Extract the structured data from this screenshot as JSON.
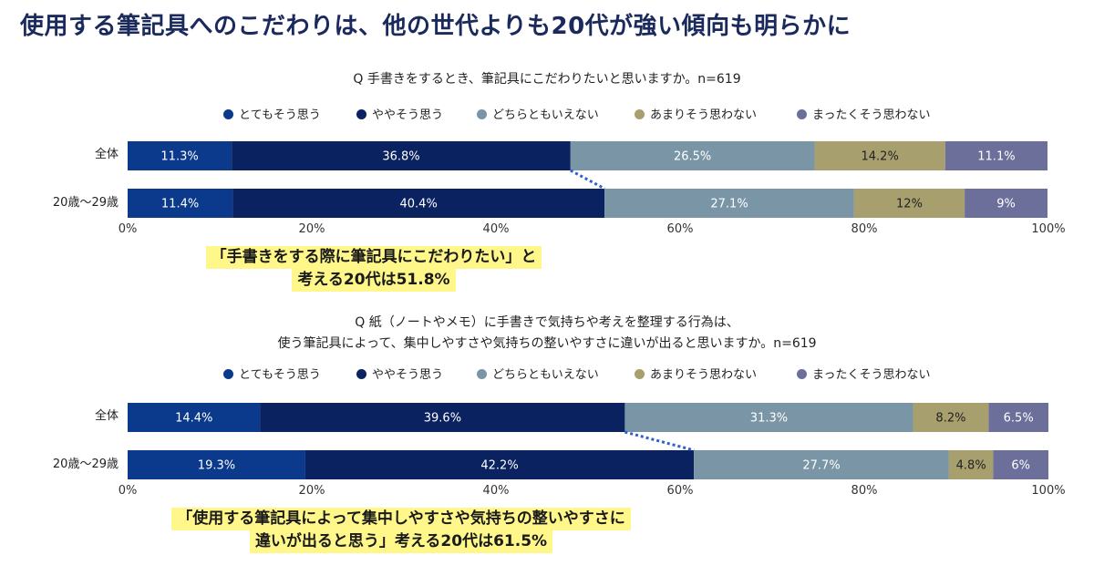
{
  "headline": "使用する筆記具へのこだわりは、他の世代よりも20代が強い傾向も明らかに",
  "legend": [
    {
      "label": "とてもそう思う",
      "color": "#0b3a8c"
    },
    {
      "label": "ややそう思う",
      "color": "#0a2260"
    },
    {
      "label": "どちらともいえない",
      "color": "#7a96a6"
    },
    {
      "label": "あまりそう思わない",
      "color": "#a89f6e"
    },
    {
      "label": "まったくそう思わない",
      "color": "#6c6f9a"
    }
  ],
  "chart_data": [
    {
      "type": "bar",
      "stacked": true,
      "orientation": "horizontal",
      "title": "Q 手書きをするとき、筆記具にこだわりたいと思いますか。n=619",
      "categories": [
        "全体",
        "20歳〜29歳"
      ],
      "series": [
        {
          "name": "とてもそう思う",
          "values": [
            11.3,
            11.4
          ],
          "labels": [
            "11.3%",
            "11.4%"
          ]
        },
        {
          "name": "ややそう思う",
          "values": [
            36.8,
            40.4
          ],
          "labels": [
            "36.8%",
            "40.4%"
          ]
        },
        {
          "name": "どちらともいえない",
          "values": [
            26.5,
            27.1
          ],
          "labels": [
            "26.5%",
            "27.1%"
          ]
        },
        {
          "name": "あまりそう思わない",
          "values": [
            14.2,
            12
          ],
          "labels": [
            "14.2%",
            "12%"
          ]
        },
        {
          "name": "まったくそう思わない",
          "values": [
            11.1,
            9
          ],
          "labels": [
            "11.1%",
            "9%"
          ]
        }
      ],
      "xlim": [
        0,
        100
      ],
      "xticks": [
        "0%",
        "20%",
        "40%",
        "60%",
        "80%",
        "100%"
      ],
      "callout": [
        "「手書きをする際に筆記具にこだわりたい」と",
        "考える20代は51.8%"
      ]
    },
    {
      "type": "bar",
      "stacked": true,
      "orientation": "horizontal",
      "title_lines": [
        "Q 紙（ノートやメモ）に手書きで気持ちや考えを整理する行為は、",
        "使う筆記具によって、集中しやすさや気持ちの整いやすさに違いが出ると思いますか。n=619"
      ],
      "categories": [
        "全体",
        "20歳〜29歳"
      ],
      "series": [
        {
          "name": "とてもそう思う",
          "values": [
            14.4,
            19.3
          ],
          "labels": [
            "14.4%",
            "19.3%"
          ]
        },
        {
          "name": "ややそう思う",
          "values": [
            39.6,
            42.2
          ],
          "labels": [
            "39.6%",
            "42.2%"
          ]
        },
        {
          "name": "どちらともいえない",
          "values": [
            31.3,
            27.7
          ],
          "labels": [
            "31.3%",
            "27.7%"
          ]
        },
        {
          "name": "あまりそう思わない",
          "values": [
            8.2,
            4.8
          ],
          "labels": [
            "8.2%",
            "4.8%"
          ]
        },
        {
          "name": "まったくそう思わない",
          "values": [
            6.5,
            6
          ],
          "labels": [
            "6.5%",
            "6%"
          ]
        }
      ],
      "xlim": [
        0,
        100
      ],
      "xticks": [
        "0%",
        "20%",
        "40%",
        "60%",
        "80%",
        "100%"
      ],
      "callout": [
        "「使用する筆記具によって集中しやすさや気持ちの整いやすさに",
        "違いが出ると思う」考える20代は61.5%"
      ]
    }
  ]
}
